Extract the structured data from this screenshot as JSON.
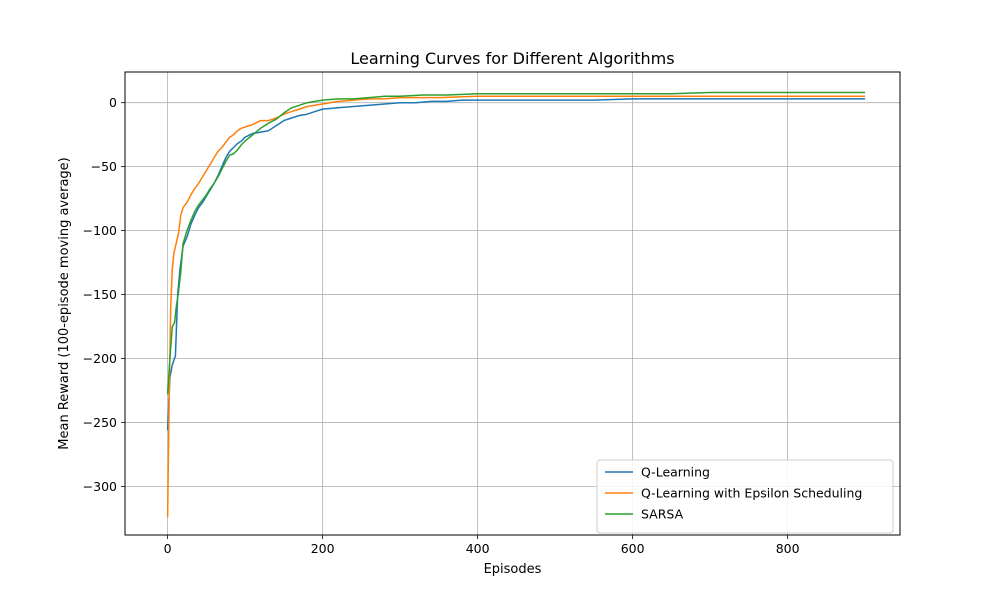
{
  "chart_data": {
    "type": "line",
    "title": "Learning Curves for Different Algorithms",
    "xlabel": "Episodes",
    "ylabel": "Mean Reward (100-episode moving average)",
    "xlim": [
      -55,
      945
    ],
    "ylim": [
      -338,
      24
    ],
    "xticks": [
      0,
      200,
      400,
      600,
      800
    ],
    "xtick_labels": [
      "0",
      "200",
      "400",
      "600",
      "800"
    ],
    "yticks": [
      0,
      -50,
      -100,
      -150,
      -200,
      -250,
      -300
    ],
    "ytick_labels": [
      "0",
      "−50",
      "−100",
      "−150",
      "−200",
      "−250",
      "−300"
    ],
    "grid": true,
    "legend_position": "lower-right",
    "series": [
      {
        "name": "Q-Learning",
        "color": "#1f77b4",
        "points": [
          [
            0,
            -256
          ],
          [
            3,
            -215
          ],
          [
            6,
            -205
          ],
          [
            10,
            -198
          ],
          [
            13,
            -150
          ],
          [
            16,
            -130
          ],
          [
            20,
            -112
          ],
          [
            25,
            -105
          ],
          [
            30,
            -95
          ],
          [
            35,
            -88
          ],
          [
            40,
            -82
          ],
          [
            45,
            -78
          ],
          [
            50,
            -73
          ],
          [
            55,
            -68
          ],
          [
            60,
            -63
          ],
          [
            65,
            -57
          ],
          [
            70,
            -50
          ],
          [
            75,
            -43
          ],
          [
            80,
            -38
          ],
          [
            85,
            -35
          ],
          [
            90,
            -32
          ],
          [
            95,
            -30
          ],
          [
            100,
            -27
          ],
          [
            110,
            -24
          ],
          [
            120,
            -23
          ],
          [
            130,
            -22
          ],
          [
            140,
            -18
          ],
          [
            150,
            -14
          ],
          [
            160,
            -12
          ],
          [
            170,
            -10
          ],
          [
            180,
            -9
          ],
          [
            190,
            -7
          ],
          [
            200,
            -5
          ],
          [
            220,
            -4
          ],
          [
            240,
            -3
          ],
          [
            260,
            -2
          ],
          [
            280,
            -1
          ],
          [
            300,
            0
          ],
          [
            320,
            0
          ],
          [
            340,
            1
          ],
          [
            360,
            1
          ],
          [
            380,
            2
          ],
          [
            400,
            2
          ],
          [
            430,
            2
          ],
          [
            460,
            2
          ],
          [
            500,
            2
          ],
          [
            550,
            2
          ],
          [
            600,
            3
          ],
          [
            650,
            3
          ],
          [
            700,
            3
          ],
          [
            750,
            3
          ],
          [
            800,
            3
          ],
          [
            850,
            3
          ],
          [
            900,
            3
          ]
        ]
      },
      {
        "name": "Q-Learning with Epsilon Scheduling",
        "color": "#ff7f0e",
        "points": [
          [
            0,
            -324
          ],
          [
            2,
            -230
          ],
          [
            4,
            -160
          ],
          [
            6,
            -130
          ],
          [
            8,
            -118
          ],
          [
            11,
            -110
          ],
          [
            14,
            -102
          ],
          [
            17,
            -88
          ],
          [
            20,
            -82
          ],
          [
            25,
            -78
          ],
          [
            30,
            -72
          ],
          [
            35,
            -67
          ],
          [
            40,
            -63
          ],
          [
            45,
            -58
          ],
          [
            50,
            -53
          ],
          [
            55,
            -48
          ],
          [
            60,
            -43
          ],
          [
            65,
            -38
          ],
          [
            70,
            -35
          ],
          [
            75,
            -31
          ],
          [
            80,
            -27
          ],
          [
            85,
            -25
          ],
          [
            90,
            -22
          ],
          [
            95,
            -20
          ],
          [
            100,
            -19
          ],
          [
            110,
            -17
          ],
          [
            120,
            -14
          ],
          [
            130,
            -14
          ],
          [
            140,
            -12
          ],
          [
            150,
            -9
          ],
          [
            160,
            -7
          ],
          [
            170,
            -5
          ],
          [
            180,
            -3
          ],
          [
            190,
            -2
          ],
          [
            200,
            -1
          ],
          [
            220,
            1
          ],
          [
            240,
            2
          ],
          [
            260,
            3
          ],
          [
            280,
            3
          ],
          [
            300,
            4
          ],
          [
            350,
            4
          ],
          [
            400,
            5
          ],
          [
            450,
            5
          ],
          [
            500,
            5
          ],
          [
            550,
            5
          ],
          [
            600,
            5
          ],
          [
            650,
            5
          ],
          [
            700,
            5
          ],
          [
            750,
            5
          ],
          [
            800,
            5
          ],
          [
            850,
            5
          ],
          [
            900,
            5
          ]
        ]
      },
      {
        "name": "SARSA",
        "color": "#2ca02c",
        "points": [
          [
            0,
            -228
          ],
          [
            3,
            -200
          ],
          [
            6,
            -175
          ],
          [
            9,
            -172
          ],
          [
            11,
            -160
          ],
          [
            14,
            -148
          ],
          [
            17,
            -132
          ],
          [
            20,
            -110
          ],
          [
            25,
            -100
          ],
          [
            30,
            -92
          ],
          [
            35,
            -85
          ],
          [
            40,
            -80
          ],
          [
            45,
            -76
          ],
          [
            50,
            -72
          ],
          [
            55,
            -67
          ],
          [
            60,
            -63
          ],
          [
            65,
            -58
          ],
          [
            70,
            -52
          ],
          [
            75,
            -46
          ],
          [
            80,
            -41
          ],
          [
            85,
            -40
          ],
          [
            90,
            -37
          ],
          [
            95,
            -33
          ],
          [
            100,
            -30
          ],
          [
            110,
            -25
          ],
          [
            120,
            -20
          ],
          [
            130,
            -16
          ],
          [
            140,
            -13
          ],
          [
            150,
            -8
          ],
          [
            160,
            -4
          ],
          [
            170,
            -2
          ],
          [
            180,
            0
          ],
          [
            190,
            1
          ],
          [
            200,
            2
          ],
          [
            220,
            3
          ],
          [
            240,
            3
          ],
          [
            260,
            4
          ],
          [
            280,
            5
          ],
          [
            300,
            5
          ],
          [
            330,
            6
          ],
          [
            360,
            6
          ],
          [
            400,
            7
          ],
          [
            450,
            7
          ],
          [
            500,
            7
          ],
          [
            550,
            7
          ],
          [
            600,
            7
          ],
          [
            650,
            7
          ],
          [
            700,
            8
          ],
          [
            750,
            8
          ],
          [
            800,
            8
          ],
          [
            850,
            8
          ],
          [
            900,
            8
          ]
        ]
      }
    ]
  }
}
